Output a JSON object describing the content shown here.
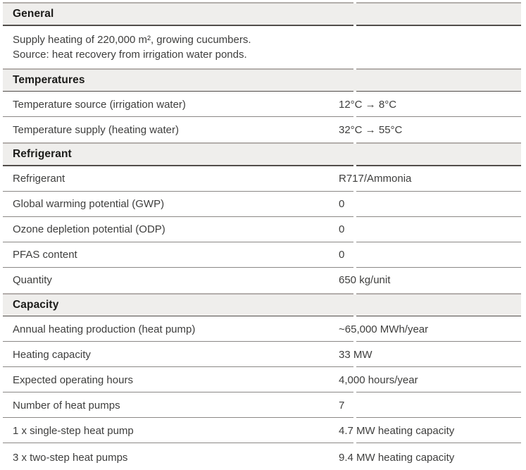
{
  "document": {
    "type": "heat-pump project specification table",
    "colors": {
      "band_background": "#efeeec",
      "rule_thick": "#b3aeab",
      "rule_dark": "#514d4a",
      "rule_row": "#8b8886",
      "title_text": "#1b1b19",
      "body_text": "#3e3e3d"
    },
    "sections": [
      {
        "title": "General",
        "note_lines": [
          "Supply heating of 220,000 m², growing cucumbers.",
          "Source: heat recovery from irrigation water ponds."
        ]
      },
      {
        "title": "Temperatures",
        "rows": [
          {
            "label": "Temperature source (irrigation water)",
            "value": "12°C → 8°C"
          },
          {
            "label": "Temperature supply (heating water)",
            "value": "32°C → 55°C"
          }
        ]
      },
      {
        "title": "Refrigerant",
        "rows": [
          {
            "label": "Refrigerant",
            "value": "R717/Ammonia"
          },
          {
            "label": "Global warming potential (GWP)",
            "value": "0"
          },
          {
            "label": "Ozone depletion potential (ODP)",
            "value": "0"
          },
          {
            "label": "PFAS content",
            "value": "0"
          },
          {
            "label": "Quantity",
            "value": "650 kg/unit"
          }
        ]
      },
      {
        "title": "Capacity",
        "rows": [
          {
            "label": "Annual heating production (heat pump)",
            "value": "~65,000 MWh/year"
          },
          {
            "label": "Heating capacity",
            "value": "33 MW"
          },
          {
            "label": "Expected operating hours",
            "value": "4,000 hours/year"
          },
          {
            "label": "Number of heat pumps",
            "value": "7"
          },
          {
            "label": "1 x single-step heat pump",
            "value": "4.7 MW heating capacity"
          },
          {
            "label": "3 x two-step heat pumps",
            "value": "9.4 MW heating capacity"
          }
        ]
      }
    ]
  }
}
